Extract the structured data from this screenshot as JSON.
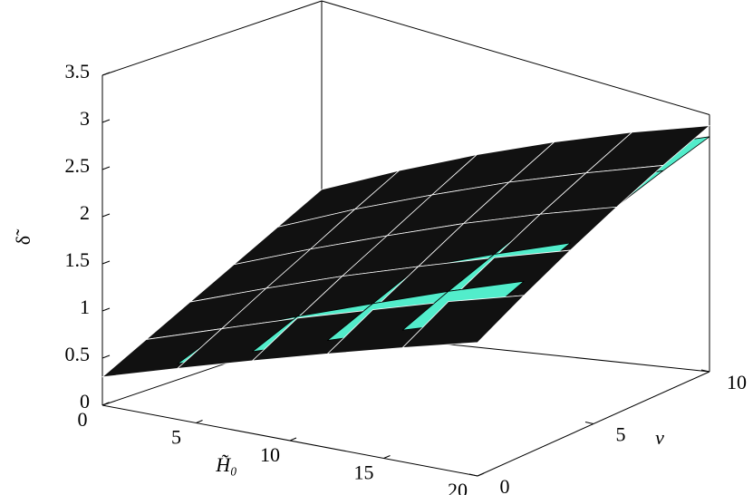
{
  "chart_data": {
    "type": "surface",
    "xlabel": "H̃₀",
    "ylabel": "ν",
    "zlabel": "δ̃",
    "x": [
      0,
      4,
      8,
      12,
      16,
      20
    ],
    "y": [
      0,
      2,
      4,
      6,
      8,
      10
    ],
    "xlim": [
      0,
      20
    ],
    "ylim": [
      0,
      10
    ],
    "zlim": [
      0,
      3.5
    ],
    "xticks": [
      0,
      5,
      10,
      15,
      20
    ],
    "yticks": [
      0,
      5,
      10
    ],
    "zticks": [
      0,
      0.5,
      1,
      1.5,
      2,
      2.5,
      3,
      3.5
    ],
    "series": [
      {
        "color": "#111111",
        "values": [
          [
            0.3,
            0.55,
            0.8,
            1.05,
            1.3,
            1.55
          ],
          [
            0.54,
            0.81,
            1.09,
            1.36,
            1.64,
            1.91
          ],
          [
            0.78,
            1.08,
            1.38,
            1.67,
            1.97,
            2.27
          ],
          [
            1.02,
            1.34,
            1.66,
            1.99,
            2.31,
            2.63
          ],
          [
            1.26,
            1.61,
            1.95,
            2.3,
            2.64,
            2.99
          ],
          [
            1.5,
            1.87,
            2.24,
            2.61,
            2.98,
            3.35
          ]
        ]
      },
      {
        "color": "#52edcb",
        "values": [
          [
            0.3,
            0.6,
            0.9,
            1.2,
            1.5,
            1.8
          ],
          [
            0.46,
            0.78,
            1.11,
            1.43,
            1.76,
            2.08
          ],
          [
            0.62,
            0.97,
            1.32,
            1.66,
            2.01,
            2.36
          ],
          [
            0.78,
            1.15,
            1.52,
            1.9,
            2.27,
            2.64
          ],
          [
            0.94,
            1.34,
            1.73,
            2.13,
            2.52,
            2.92
          ],
          [
            1.1,
            1.52,
            1.94,
            2.36,
            2.78,
            3.2
          ]
        ]
      }
    ]
  }
}
